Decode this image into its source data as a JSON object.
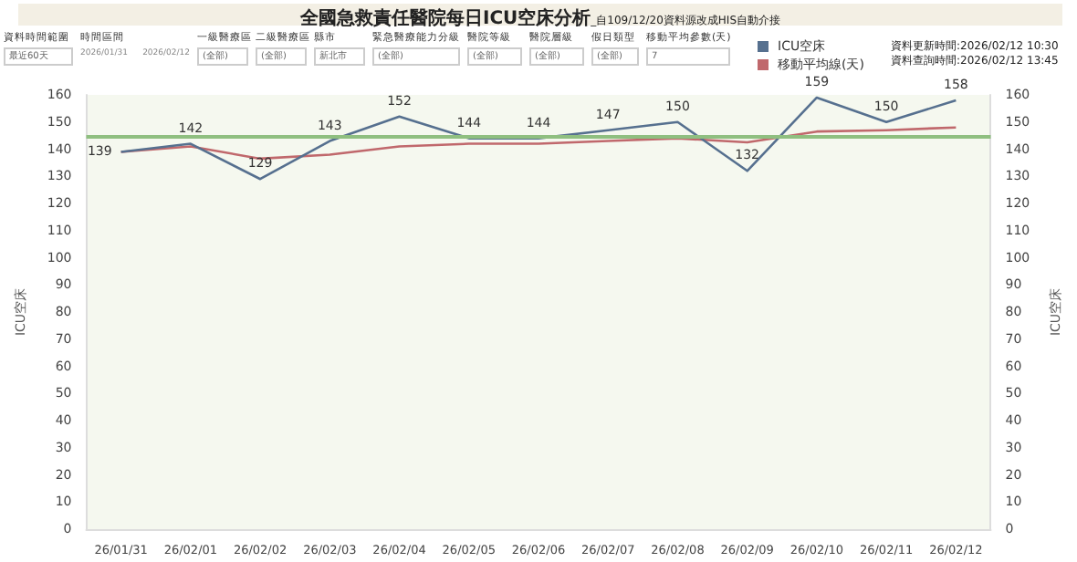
{
  "chart_data": {
    "type": "line",
    "title": "全國急救責任醫院每日ICU空床分析",
    "subtitle": "_自109/12/20資料源改成HIS自動介接",
    "annotations": [
      "資料時間範圍",
      "最近60天",
      "時間區間",
      "2026/01/31",
      "2026/02/12",
      "一級醫療區",
      "(全部)",
      "二級醫療區",
      "(全部)",
      "縣市",
      "新北市",
      "緊急醫療能力分級",
      "(全部)",
      "醫院等級",
      "(全部)",
      "醫院層級",
      "(全部)",
      "假日類型",
      "(全部)",
      "移動平均參數(天)",
      "7",
      "資料更新時間:2026/02/12 10:30",
      "資料查詢時間:2026/02/12 13:45"
    ],
    "categories": [
      "26/01/31",
      "26/02/01",
      "26/02/02",
      "26/02/03",
      "26/02/04",
      "26/02/05",
      "26/02/06",
      "26/02/07",
      "26/02/08",
      "26/02/09",
      "26/02/10",
      "26/02/11",
      "26/02/12"
    ],
    "series": [
      {
        "name": "ICU空床",
        "color": "#56708f",
        "values": [
          139,
          142,
          129,
          143,
          152,
          144,
          144,
          147,
          150,
          132,
          159,
          150,
          158
        ],
        "value_labels": [
          "139",
          "142",
          "129",
          "143",
          "152",
          "144",
          "144",
          "147",
          "150",
          "132",
          "159",
          "150",
          "158"
        ]
      },
      {
        "name": "移動平均線(天)",
        "color": "#c0686c",
        "values": [
          139,
          141,
          136.5,
          138,
          141,
          142,
          142,
          143,
          144,
          142.5,
          146.5,
          147,
          148
        ]
      }
    ],
    "ylabel": "ICU空床",
    "y2label": "ICU空床",
    "ylim": [
      0,
      160
    ],
    "yticks": [
      0,
      10,
      20,
      30,
      40,
      50,
      60,
      70,
      80,
      90,
      100,
      110,
      120,
      130,
      140,
      150,
      160
    ],
    "y2lim": [
      0,
      160
    ],
    "y2ticks": [
      0,
      10,
      20,
      30,
      40,
      50,
      60,
      70,
      80,
      90,
      100,
      110,
      120,
      130,
      140,
      150,
      160
    ],
    "ref_lines": [
      {
        "axis": "y",
        "value": 145,
        "color": "#8fbf80"
      }
    ],
    "legend": "top",
    "grid": false,
    "marker": "none",
    "line_style": "solid"
  }
}
